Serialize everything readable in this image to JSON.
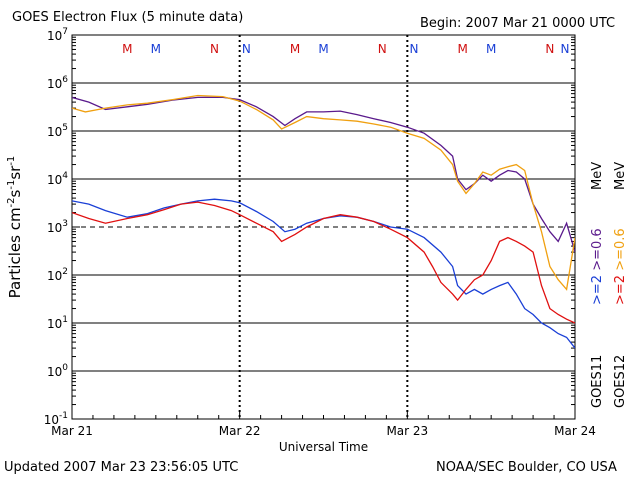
{
  "header": {
    "title": "GOES Electron Flux (5 minute data)",
    "begin": "Begin: 2007 Mar 21 0000 UTC"
  },
  "footer": {
    "updated": "Updated 2007 Mar 23 23:56:05 UTC",
    "source": "NOAA/SEC Boulder, CO USA"
  },
  "colors": {
    "goes11_2mev": "#1a3fd6",
    "goes11_06mev": "#5a1a8c",
    "goes12_2mev": "#e01010",
    "goes12_06mev": "#f0a010",
    "manoeuvre_m": "#d01010",
    "manoeuvre_n": "#1a3fd6"
  },
  "chart_data": {
    "type": "line",
    "title": "GOES Electron Flux (5 minute data)",
    "xlabel": "Universal Time",
    "ylabel": "Particles cm⁻²s⁻¹sr⁻¹",
    "ylabel_parts": {
      "base": "Particles cm",
      "e1": "-2",
      "s": "s",
      "e2": "-1",
      "sr": "sr",
      "e3": "-1"
    },
    "yscale": "log",
    "ylim": [
      0.1,
      10000000
    ],
    "ytick_labels": [
      "10-1",
      "100",
      "101",
      "102",
      "103",
      "104",
      "105",
      "106",
      "107"
    ],
    "ytick_parts": [
      {
        "b": "10",
        "e": "-1"
      },
      {
        "b": "10",
        "e": "0"
      },
      {
        "b": "10",
        "e": "1"
      },
      {
        "b": "10",
        "e": "2"
      },
      {
        "b": "10",
        "e": "3"
      },
      {
        "b": "10",
        "e": "4"
      },
      {
        "b": "10",
        "e": "5"
      },
      {
        "b": "10",
        "e": "6"
      },
      {
        "b": "10",
        "e": "7"
      }
    ],
    "xlim_days": [
      0,
      3
    ],
    "xtick_labels": [
      "Mar 21",
      "Mar 22",
      "Mar 23",
      "Mar 24"
    ],
    "threshold_line": 1000,
    "grid": "horizontal decades",
    "legend": {
      "goes11": "GOES11",
      "goes12": "GOES12",
      "entries": [
        {
          "label": ">=2",
          "color": "#1a3fd6"
        },
        {
          "label": ">=0.6",
          "color": "#5a1a8c"
        },
        {
          "label": ">=2",
          "color": "#e01010"
        },
        {
          "label": ">=0.6",
          "color": "#f0a010"
        }
      ],
      "unit": "MeV"
    },
    "markers": [
      {
        "label": "M",
        "day": 0.33,
        "color": "#d01010"
      },
      {
        "label": "M",
        "day": 0.5,
        "color": "#1a3fd6"
      },
      {
        "label": "N",
        "day": 0.85,
        "color": "#d01010"
      },
      {
        "label": "N",
        "day": 1.04,
        "color": "#1a3fd6"
      },
      {
        "label": "M",
        "day": 1.33,
        "color": "#d01010"
      },
      {
        "label": "M",
        "day": 1.5,
        "color": "#1a3fd6"
      },
      {
        "label": "N",
        "day": 1.85,
        "color": "#d01010"
      },
      {
        "label": "N",
        "day": 2.04,
        "color": "#1a3fd6"
      },
      {
        "label": "M",
        "day": 2.33,
        "color": "#d01010"
      },
      {
        "label": "M",
        "day": 2.5,
        "color": "#1a3fd6"
      },
      {
        "label": "N",
        "day": 2.85,
        "color": "#d01010"
      },
      {
        "label": "N",
        "day": 2.94,
        "color": "#1a3fd6"
      }
    ],
    "series": [
      {
        "name": "GOES11 >=0.6 MeV",
        "color": "#5a1a8c",
        "x": [
          0,
          0.1,
          0.2,
          0.33,
          0.45,
          0.6,
          0.75,
          0.9,
          1.0,
          1.1,
          1.2,
          1.27,
          1.33,
          1.4,
          1.5,
          1.6,
          1.7,
          1.8,
          1.9,
          2.0,
          2.1,
          2.2,
          2.27,
          2.3,
          2.35,
          2.4,
          2.45,
          2.5,
          2.55,
          2.6,
          2.65,
          2.7,
          2.75,
          2.8,
          2.85,
          2.9,
          2.95,
          3.0
        ],
        "y": [
          500000,
          400000,
          280000,
          320000,
          360000,
          440000,
          500000,
          500000,
          450000,
          320000,
          200000,
          130000,
          180000,
          250000,
          250000,
          260000,
          220000,
          180000,
          150000,
          120000,
          90000,
          50000,
          30000,
          10000,
          6000,
          8000,
          12000,
          9000,
          12000,
          15000,
          14000,
          10000,
          3000,
          1500,
          800,
          500,
          1200,
          300
        ]
      },
      {
        "name": "GOES12 >=0.6 MeV",
        "color": "#f0a010",
        "x": [
          0,
          0.08,
          0.2,
          0.33,
          0.45,
          0.6,
          0.75,
          0.9,
          1.0,
          1.1,
          1.2,
          1.25,
          1.33,
          1.4,
          1.5,
          1.6,
          1.7,
          1.8,
          1.9,
          2.0,
          2.1,
          2.2,
          2.27,
          2.3,
          2.35,
          2.4,
          2.45,
          2.5,
          2.55,
          2.6,
          2.65,
          2.7,
          2.75,
          2.8,
          2.85,
          2.9,
          2.95,
          3.0
        ],
        "y": [
          300000,
          250000,
          300000,
          350000,
          380000,
          450000,
          550000,
          520000,
          420000,
          280000,
          170000,
          110000,
          150000,
          200000,
          180000,
          170000,
          160000,
          140000,
          120000,
          90000,
          70000,
          40000,
          20000,
          9000,
          5000,
          8000,
          14000,
          12000,
          16000,
          18000,
          20000,
          15000,
          3000,
          800,
          150,
          80,
          50,
          600
        ]
      },
      {
        "name": "GOES11 >=2 MeV",
        "color": "#1a3fd6",
        "x": [
          0,
          0.1,
          0.2,
          0.33,
          0.45,
          0.55,
          0.65,
          0.75,
          0.85,
          0.95,
          1.0,
          1.1,
          1.2,
          1.27,
          1.33,
          1.4,
          1.5,
          1.6,
          1.7,
          1.8,
          1.9,
          2.0,
          2.1,
          2.2,
          2.27,
          2.3,
          2.35,
          2.4,
          2.45,
          2.5,
          2.55,
          2.6,
          2.65,
          2.7,
          2.75,
          2.8,
          2.85,
          2.9,
          2.95,
          3.0
        ],
        "y": [
          3500,
          3000,
          2200,
          1600,
          1900,
          2500,
          3000,
          3500,
          3800,
          3500,
          3200,
          2100,
          1300,
          800,
          900,
          1200,
          1500,
          1700,
          1600,
          1300,
          1000,
          900,
          600,
          300,
          150,
          60,
          40,
          50,
          40,
          50,
          60,
          70,
          40,
          20,
          15,
          10,
          8,
          6,
          5,
          3
        ]
      },
      {
        "name": "GOES12 >=2 MeV",
        "color": "#e01010",
        "x": [
          0,
          0.1,
          0.2,
          0.33,
          0.45,
          0.55,
          0.65,
          0.75,
          0.85,
          0.95,
          1.0,
          1.1,
          1.2,
          1.25,
          1.33,
          1.4,
          1.5,
          1.6,
          1.7,
          1.8,
          1.9,
          2.0,
          2.1,
          2.15,
          2.2,
          2.27,
          2.3,
          2.35,
          2.4,
          2.45,
          2.5,
          2.55,
          2.6,
          2.65,
          2.7,
          2.75,
          2.8,
          2.85,
          2.9,
          2.95,
          3.0
        ],
        "y": [
          2000,
          1500,
          1200,
          1500,
          1800,
          2300,
          3000,
          3300,
          2800,
          2200,
          1800,
          1200,
          800,
          500,
          700,
          1000,
          1500,
          1800,
          1600,
          1300,
          900,
          600,
          300,
          150,
          70,
          40,
          30,
          50,
          80,
          100,
          200,
          500,
          600,
          500,
          400,
          300,
          60,
          20,
          15,
          12,
          10
        ]
      }
    ]
  }
}
